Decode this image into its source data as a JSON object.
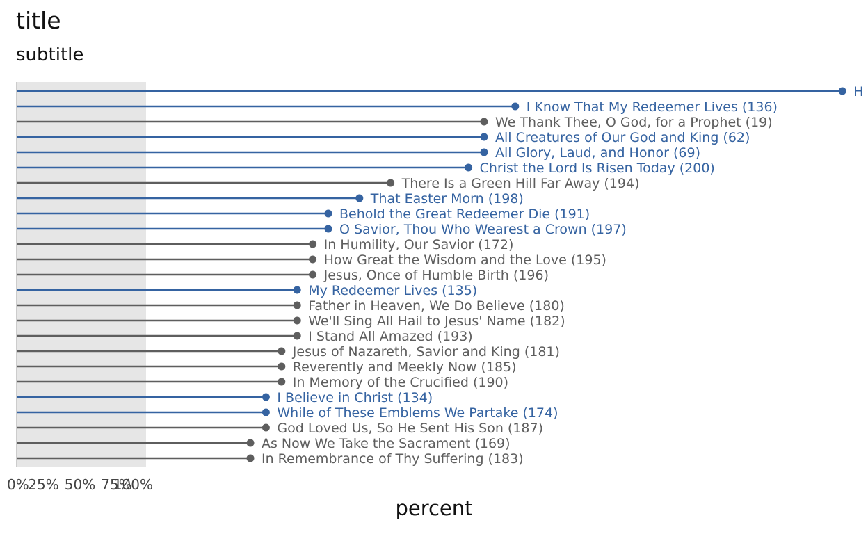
{
  "chart_data": {
    "type": "lollipop",
    "title": "title",
    "subtitle": "subtitle",
    "xlabel": "percent",
    "ylabel": "",
    "x_tick_labels": [
      "0%",
      "25%",
      "50%",
      "75%",
      "100%"
    ],
    "colors": {
      "highlight": "#3563a1",
      "other": "#5e5e5e",
      "band": "#e6e6e6"
    },
    "rows": [
      {
        "label": "H",
        "value": 53.0,
        "highlight": true
      },
      {
        "label": "I Know That My Redeemer Lives (136)",
        "value": 32.0,
        "highlight": true
      },
      {
        "label": "We Thank Thee, O God, for a Prophet (19)",
        "value": 30.0,
        "highlight": false
      },
      {
        "label": "All Creatures of Our God and King (62)",
        "value": 30.0,
        "highlight": true
      },
      {
        "label": "All Glory, Laud, and Honor (69)",
        "value": 30.0,
        "highlight": true
      },
      {
        "label": "Christ the Lord Is Risen Today (200)",
        "value": 29.0,
        "highlight": true
      },
      {
        "label": "There Is a Green Hill Far Away (194)",
        "value": 24.0,
        "highlight": false
      },
      {
        "label": "That Easter Morn (198)",
        "value": 22.0,
        "highlight": true
      },
      {
        "label": "Behold the Great Redeemer Die (191)",
        "value": 20.0,
        "highlight": true
      },
      {
        "label": "O Savior, Thou Who Wearest a Crown (197)",
        "value": 20.0,
        "highlight": true
      },
      {
        "label": "In Humility, Our Savior (172)",
        "value": 19.0,
        "highlight": false
      },
      {
        "label": "How Great the Wisdom and the Love (195)",
        "value": 19.0,
        "highlight": false
      },
      {
        "label": "Jesus, Once of Humble Birth (196)",
        "value": 19.0,
        "highlight": false
      },
      {
        "label": "My Redeemer Lives (135)",
        "value": 18.0,
        "highlight": true
      },
      {
        "label": "Father in Heaven, We Do Believe (180)",
        "value": 18.0,
        "highlight": false
      },
      {
        "label": "We'll Sing All Hail to Jesus' Name (182)",
        "value": 18.0,
        "highlight": false
      },
      {
        "label": "I Stand All Amazed (193)",
        "value": 18.0,
        "highlight": false
      },
      {
        "label": "Jesus of Nazareth, Savior and King (181)",
        "value": 17.0,
        "highlight": false
      },
      {
        "label": "Reverently and Meekly Now (185)",
        "value": 17.0,
        "highlight": false
      },
      {
        "label": "In Memory of the Crucified (190)",
        "value": 17.0,
        "highlight": false
      },
      {
        "label": "I Believe in Christ (134)",
        "value": 16.0,
        "highlight": true
      },
      {
        "label": "While of These Emblems We Partake (174)",
        "value": 16.0,
        "highlight": true
      },
      {
        "label": "God Loved Us, So He Sent His Son (187)",
        "value": 16.0,
        "highlight": false
      },
      {
        "label": "As Now We Take the Sacrament (169)",
        "value": 15.0,
        "highlight": false
      },
      {
        "label": "In Remembrance of Thy Suffering (183)",
        "value": 15.0,
        "highlight": false
      }
    ]
  }
}
